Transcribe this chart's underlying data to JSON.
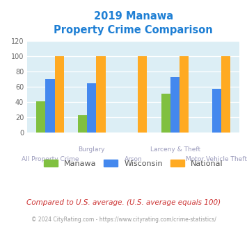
{
  "title_line1": "2019 Manawa",
  "title_line2": "Property Crime Comparison",
  "title_color": "#1e7fd4",
  "categories": [
    "All Property Crime",
    "Burglary",
    "Arson",
    "Larceny & Theft",
    "Motor Vehicle Theft"
  ],
  "manawa": [
    41,
    23,
    0,
    51,
    0
  ],
  "wisconsin": [
    70,
    65,
    0,
    73,
    58
  ],
  "national": [
    100,
    100,
    100,
    100,
    100
  ],
  "manawa_color": "#80c040",
  "wisconsin_color": "#4488ee",
  "national_color": "#ffaa22",
  "bg_color": "#dceef5",
  "ylim": [
    0,
    120
  ],
  "yticks": [
    0,
    20,
    40,
    60,
    80,
    100,
    120
  ],
  "xlabel_top": [
    "",
    "Burglary",
    "",
    "Larceny & Theft",
    ""
  ],
  "xlabel_bot": [
    "All Property Crime",
    "",
    "Arson",
    "",
    "Motor Vehicle Theft"
  ],
  "legend_labels": [
    "Manawa",
    "Wisconsin",
    "National"
  ],
  "footnote": "Compared to U.S. average. (U.S. average equals 100)",
  "footnote_color": "#cc3333",
  "copyright": "© 2024 CityRating.com - https://www.cityrating.com/crime-statistics/",
  "copyright_color": "#999999",
  "bar_width": 0.22
}
